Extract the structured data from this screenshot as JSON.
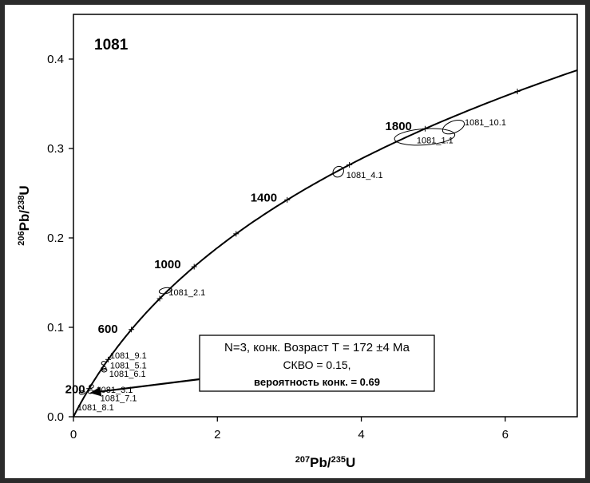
{
  "chart_data": {
    "type": "scatter",
    "title": "1081",
    "xlabel": {
      "parts": [
        {
          "t": "207",
          "sup": true
        },
        {
          "t": "Pb/",
          "sup": false
        },
        {
          "t": "235",
          "sup": true
        },
        {
          "t": "U",
          "sup": false
        }
      ]
    },
    "ylabel": {
      "parts": [
        {
          "t": "206",
          "sup": true
        },
        {
          "t": "Pb/",
          "sup": false
        },
        {
          "t": "238",
          "sup": true
        },
        {
          "t": "U",
          "sup": false
        }
      ]
    },
    "xlim": [
      0,
      7
    ],
    "ylim": [
      0,
      0.45
    ],
    "xticks": [
      0,
      2,
      4,
      6
    ],
    "xtick_labels": [
      "0",
      "2",
      "4",
      "6"
    ],
    "yticks": [
      0,
      0.1,
      0.2,
      0.3,
      0.4
    ],
    "ytick_labels": [
      "0.0",
      "0.1",
      "0.2",
      "0.3",
      "0.4"
    ],
    "concordia_age_marks": [
      200,
      400,
      600,
      800,
      1000,
      1200,
      1400,
      1600,
      1800,
      2000,
      2200
    ],
    "concordia_age_labels": [
      {
        "age": 200,
        "label": "200"
      },
      {
        "age": 600,
        "label": "600"
      },
      {
        "age": 1000,
        "label": "1000"
      },
      {
        "age": 1400,
        "label": "1400"
      },
      {
        "age": 1800,
        "label": "1800"
      }
    ],
    "ellipses": [
      {
        "label": "1081_10.1",
        "x": 5.28,
        "y": 0.324,
        "rx": 0.16,
        "ry": 0.0065,
        "angle": 22
      },
      {
        "label": "1081_1.1",
        "x": 4.88,
        "y": 0.313,
        "rx": 0.42,
        "ry": 0.009,
        "angle": 4
      },
      {
        "label": "1081_4.1",
        "x": 3.68,
        "y": 0.274,
        "rx": 0.08,
        "ry": 0.0055,
        "angle": 45
      },
      {
        "label": "1081_2.1",
        "x": 1.28,
        "y": 0.141,
        "rx": 0.09,
        "ry": 0.0032,
        "angle": 10
      },
      {
        "label": "1081_9.1",
        "x": 0.42,
        "y": 0.06,
        "rx": 0.03,
        "ry": 0.0015,
        "angle": 10
      },
      {
        "label": "1081_5.1",
        "x": 0.42,
        "y": 0.054,
        "rx": 0.035,
        "ry": 0.0015,
        "angle": 10
      },
      {
        "label": "1081_6.1",
        "x": 0.43,
        "y": 0.052,
        "rx": 0.035,
        "ry": 0.0015,
        "angle": 10
      },
      {
        "label": "1081_3.1",
        "x": 0.25,
        "y": 0.034,
        "rx": 0.03,
        "ry": 0.0015,
        "angle": 10
      },
      {
        "label": "1081_7.1",
        "x": 0.24,
        "y": 0.028,
        "rx": 0.035,
        "ry": 0.0018,
        "angle": 10
      },
      {
        "label": "1081_8.1",
        "x": 0.12,
        "y": 0.027,
        "rx": 0.04,
        "ry": 0.0018,
        "angle": 10
      }
    ],
    "concordia_age_point": {
      "x": 0.26,
      "y": 0.027
    },
    "result_box": {
      "line1": "N=3, конк. Возраст Т = 172 ±4 Ма",
      "line2": "СКВО = 0.15,",
      "line3": "вероятность конк. = 0.69"
    }
  }
}
